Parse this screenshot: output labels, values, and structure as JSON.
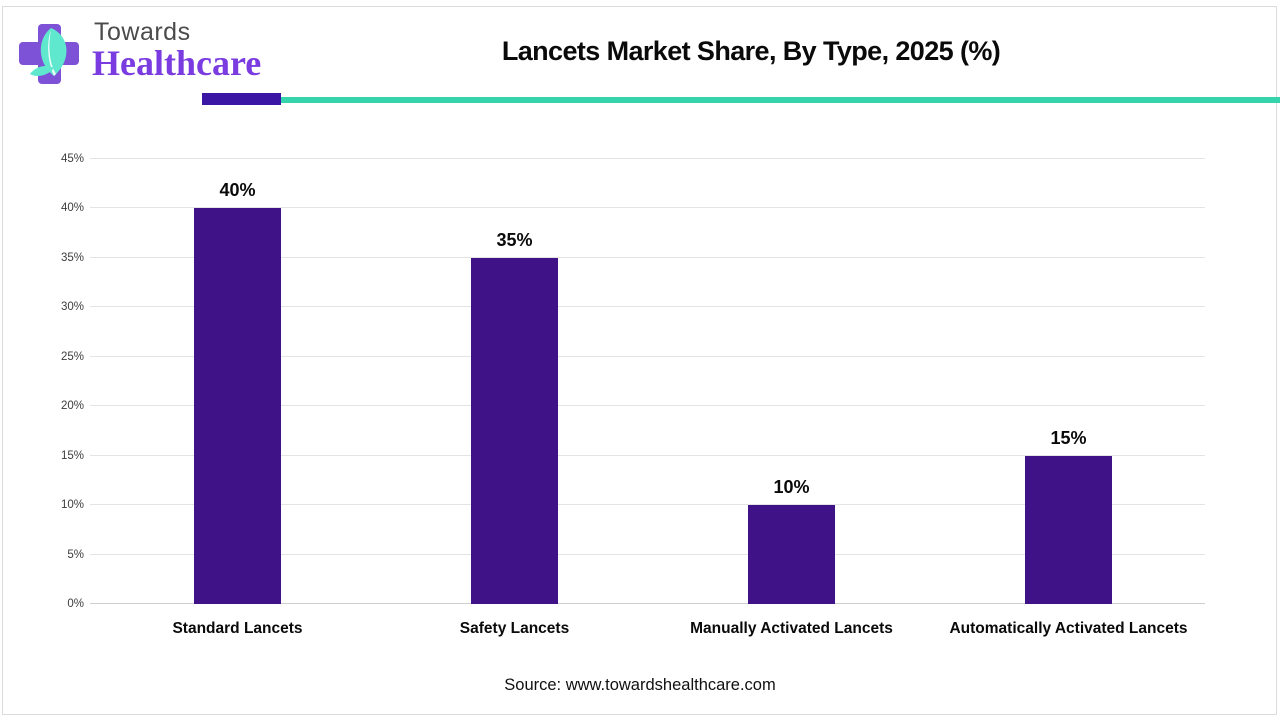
{
  "header": {
    "logo_line1": "Towards",
    "logo_line2": "Healthcare",
    "logo_cross_color": "#7e52d6",
    "logo_leaf_color": "#5fe8ce",
    "accent_purple": "#3b16a5",
    "accent_teal": "#35d4ad"
  },
  "chart_data": {
    "type": "bar",
    "title": "Lancets Market Share, By Type, 2025 (%)",
    "categories": [
      "Standard Lancets",
      "Safety Lancets",
      "Manually Activated Lancets",
      "Automatically Activated Lancets"
    ],
    "values": [
      40,
      35,
      10,
      15
    ],
    "value_labels": [
      "40%",
      "35%",
      "10%",
      "15%"
    ],
    "y_ticks": [
      {
        "value": 0,
        "label": "0%"
      },
      {
        "value": 5,
        "label": "5%"
      },
      {
        "value": 10,
        "label": "10%"
      },
      {
        "value": 15,
        "label": "15%"
      },
      {
        "value": 20,
        "label": "20%"
      },
      {
        "value": 25,
        "label": "25%"
      },
      {
        "value": 30,
        "label": "30%"
      },
      {
        "value": 35,
        "label": "35%"
      },
      {
        "value": 40,
        "label": "40%"
      },
      {
        "value": 45,
        "label": "45%"
      }
    ],
    "ylim": [
      0,
      45
    ],
    "xlabel": "",
    "ylabel": "",
    "grid": true,
    "legend": "none",
    "bar_color": "#3f1287"
  },
  "footer": {
    "source": "Source: www.towardshealthcare.com"
  }
}
